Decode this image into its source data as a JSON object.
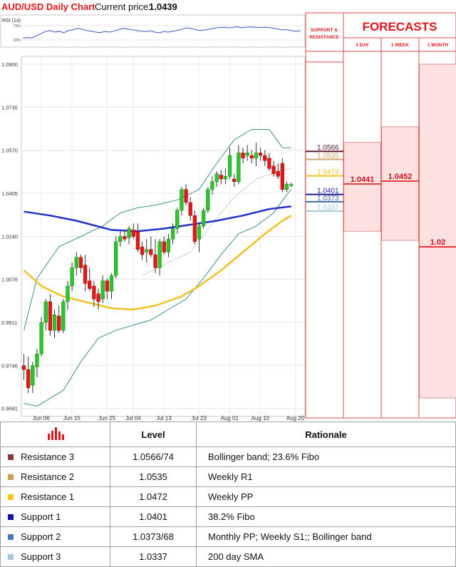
{
  "header": {
    "title": "AUD/USD Daily Chart",
    "price_label": "Current price:",
    "price_value": "1.0439"
  },
  "rsi": {
    "label": "RSI (14)",
    "upper": "70%",
    "lower": "30%"
  },
  "sr_panel": {
    "header": "SUPPORT & RESISTANCE",
    "levels": [
      {
        "value": 1.0566,
        "label": "1.0566",
        "color": "#5a1a32"
      },
      {
        "value": 1.0535,
        "label": "1.0535",
        "color": "#d2a868"
      },
      {
        "value": 1.0472,
        "label": "1.0472",
        "color": "#f0c419"
      },
      {
        "value": 1.0401,
        "label": "1.0401",
        "color": "#1a1a9a"
      },
      {
        "value": 1.0373,
        "label": "1.0373",
        "color": "#3b6aa8"
      },
      {
        "value": 1.0337,
        "label": "1.0337",
        "color": "#a8c8dc"
      }
    ]
  },
  "forecasts": {
    "title": "FORECASTS",
    "columns": [
      {
        "label": "1 DAY",
        "value": "1.0441",
        "center": 1.0441,
        "high": 1.06,
        "low": 1.026
      },
      {
        "label": "1 WEEK",
        "value": "1.0452",
        "center": 1.0452,
        "high": 1.066,
        "low": 1.0225
      },
      {
        "label": "1 MONTH",
        "value": "1.02",
        "center": 1.02,
        "high": 1.09,
        "low": 0.96
      }
    ]
  },
  "table": {
    "col_level": "Level",
    "col_rationale": "Rationale",
    "rows": [
      {
        "name": "Resistance 3",
        "level": "1.0566/74",
        "rationale": "Bollinger band; 23.6% Fibo",
        "color": "#8b3a3a"
      },
      {
        "name": "Resistance 2",
        "level": "1.0535",
        "rationale": "Weekly R1",
        "color": "#c9a050"
      },
      {
        "name": "Resistance 1",
        "level": "1.0472",
        "rationale": "Weekly PP",
        "color": "#f5c518"
      },
      {
        "name": "Support 1",
        "level": "1.0401",
        "rationale": "38.2% Fibo",
        "color": "#1010b0"
      },
      {
        "name": "Support 2",
        "level": "1.0373/68",
        "rationale": "Monthly PP; Weekly S1;;  Bollinger band",
        "color": "#4a78b8"
      },
      {
        "name": "Support 3",
        "level": "1.0337",
        "rationale": "200 day SMA",
        "color": "#a8c8e0"
      }
    ]
  },
  "chart_data": {
    "type": "candlestick",
    "title": "AUD/USD Daily Chart",
    "y_ticks": [
      1.09,
      1.0735,
      1.057,
      1.0405,
      1.024,
      1.0076,
      0.9911,
      0.9746,
      0.9581
    ],
    "y_tick_labels": [
      "1.0900",
      "1.0735",
      "1.0570",
      "1.0405",
      "1.0240",
      "1.0076",
      "0.9911",
      "0.9746",
      "0.9581"
    ],
    "ylim": [
      0.955,
      1.093
    ],
    "x_tick_labels": [
      {
        "label": "Jun 06",
        "index": 2
      },
      {
        "label": "Jun 15",
        "index": 9
      },
      {
        "label": "Jun 25",
        "index": 17
      },
      {
        "label": "Jul 04",
        "index": 23
      },
      {
        "label": "Jul 13",
        "index": 30
      },
      {
        "label": "Jul 23",
        "index": 38
      },
      {
        "label": "Aug 01",
        "index": 45
      },
      {
        "label": "Aug 10",
        "index": 52
      },
      {
        "label": "Aug 20",
        "index": 60
      }
    ],
    "candles": [
      {
        "o": 0.9745,
        "h": 0.979,
        "l": 0.969,
        "c": 0.973
      },
      {
        "o": 0.973,
        "h": 0.978,
        "l": 0.964,
        "c": 0.966
      },
      {
        "o": 0.967,
        "h": 0.976,
        "l": 0.964,
        "c": 0.9745
      },
      {
        "o": 0.974,
        "h": 0.981,
        "l": 0.97,
        "c": 0.979
      },
      {
        "o": 0.979,
        "h": 0.993,
        "l": 0.978,
        "c": 0.991
      },
      {
        "o": 0.991,
        "h": 1.0,
        "l": 0.988,
        "c": 0.999
      },
      {
        "o": 0.999,
        "h": 1.002,
        "l": 0.986,
        "c": 0.988
      },
      {
        "o": 0.988,
        "h": 0.996,
        "l": 0.985,
        "c": 0.994
      },
      {
        "o": 0.9935,
        "h": 0.9975,
        "l": 0.987,
        "c": 0.988
      },
      {
        "o": 0.988,
        "h": 1.0,
        "l": 0.987,
        "c": 0.999
      },
      {
        "o": 0.999,
        "h": 1.007,
        "l": 0.996,
        "c": 1.005
      },
      {
        "o": 1.005,
        "h": 1.014,
        "l": 1.003,
        "c": 1.012
      },
      {
        "o": 1.012,
        "h": 1.018,
        "l": 1.009,
        "c": 1.016
      },
      {
        "o": 1.016,
        "h": 1.017,
        "l": 1.01,
        "c": 1.012
      },
      {
        "o": 1.013,
        "h": 1.017,
        "l": 1.003,
        "c": 1.006
      },
      {
        "o": 1.007,
        "h": 1.012,
        "l": 1.003,
        "c": 1.004
      },
      {
        "o": 1.005,
        "h": 1.007,
        "l": 0.997,
        "c": 1.0
      },
      {
        "o": 1.002,
        "h": 1.004,
        "l": 0.996,
        "c": 0.999
      },
      {
        "o": 1.0,
        "h": 1.009,
        "l": 0.9985,
        "c": 1.007
      },
      {
        "o": 1.007,
        "h": 1.008,
        "l": 1.0,
        "c": 1.003
      },
      {
        "o": 1.003,
        "h": 1.01,
        "l": 1.0,
        "c": 1.009
      },
      {
        "o": 1.009,
        "h": 1.024,
        "l": 1.008,
        "c": 1.022
      },
      {
        "o": 1.022,
        "h": 1.026,
        "l": 1.02,
        "c": 1.024
      },
      {
        "o": 1.024,
        "h": 1.026,
        "l": 1.022,
        "c": 1.023
      },
      {
        "o": 1.0235,
        "h": 1.028,
        "l": 1.021,
        "c": 1.027
      },
      {
        "o": 1.0265,
        "h": 1.029,
        "l": 1.023,
        "c": 1.024
      },
      {
        "o": 1.026,
        "h": 1.029,
        "l": 1.018,
        "c": 1.019
      },
      {
        "o": 1.02,
        "h": 1.022,
        "l": 1.015,
        "c": 1.017
      },
      {
        "o": 1.018,
        "h": 1.023,
        "l": 1.014,
        "c": 1.019
      },
      {
        "o": 1.019,
        "h": 1.024,
        "l": 1.016,
        "c": 1.017
      },
      {
        "o": 1.017,
        "h": 1.023,
        "l": 1.01,
        "c": 1.012
      },
      {
        "o": 1.012,
        "h": 1.023,
        "l": 1.009,
        "c": 1.022
      },
      {
        "o": 1.022,
        "h": 1.024,
        "l": 1.017,
        "c": 1.018
      },
      {
        "o": 1.018,
        "h": 1.025,
        "l": 1.016,
        "c": 1.023
      },
      {
        "o": 1.023,
        "h": 1.029,
        "l": 1.021,
        "c": 1.027
      },
      {
        "o": 1.027,
        "h": 1.035,
        "l": 1.025,
        "c": 1.034
      },
      {
        "o": 1.034,
        "h": 1.043,
        "l": 1.032,
        "c": 1.042
      },
      {
        "o": 1.042,
        "h": 1.044,
        "l": 1.036,
        "c": 1.037
      },
      {
        "o": 1.037,
        "h": 1.039,
        "l": 1.03,
        "c": 1.032
      },
      {
        "o": 1.032,
        "h": 1.034,
        "l": 1.021,
        "c": 1.022
      },
      {
        "o": 1.023,
        "h": 1.029,
        "l": 1.018,
        "c": 1.028
      },
      {
        "o": 1.028,
        "h": 1.035,
        "l": 1.027,
        "c": 1.034
      },
      {
        "o": 1.034,
        "h": 1.043,
        "l": 1.033,
        "c": 1.042
      },
      {
        "o": 1.042,
        "h": 1.047,
        "l": 1.04,
        "c": 1.045
      },
      {
        "o": 1.045,
        "h": 1.049,
        "l": 1.043,
        "c": 1.048
      },
      {
        "o": 1.0475,
        "h": 1.0495,
        "l": 1.044,
        "c": 1.046
      },
      {
        "o": 1.046,
        "h": 1.05,
        "l": 1.044,
        "c": 1.047
      },
      {
        "o": 1.047,
        "h": 1.058,
        "l": 1.046,
        "c": 1.055
      },
      {
        "o": 1.046,
        "h": 1.048,
        "l": 1.043,
        "c": 1.045
      },
      {
        "o": 1.045,
        "h": 1.059,
        "l": 1.044,
        "c": 1.056
      },
      {
        "o": 1.056,
        "h": 1.058,
        "l": 1.052,
        "c": 1.054
      },
      {
        "o": 1.055,
        "h": 1.059,
        "l": 1.053,
        "c": 1.056
      },
      {
        "o": 1.055,
        "h": 1.057,
        "l": 1.052,
        "c": 1.054
      },
      {
        "o": 1.054,
        "h": 1.06,
        "l": 1.051,
        "c": 1.056
      },
      {
        "o": 1.056,
        "h": 1.058,
        "l": 1.053,
        "c": 1.055
      },
      {
        "o": 1.055,
        "h": 1.057,
        "l": 1.051,
        "c": 1.053
      },
      {
        "o": 1.054,
        "h": 1.056,
        "l": 1.049,
        "c": 1.05
      },
      {
        "o": 1.051,
        "h": 1.053,
        "l": 1.047,
        "c": 1.048
      },
      {
        "o": 1.049,
        "h": 1.052,
        "l": 1.046,
        "c": 1.047
      },
      {
        "o": 1.052,
        "h": 1.054,
        "l": 1.041,
        "c": 1.042
      },
      {
        "o": 1.042,
        "h": 1.045,
        "l": 1.041,
        "c": 1.044
      },
      {
        "o": 1.0435,
        "h": 1.0445,
        "l": 1.043,
        "c": 1.0439
      }
    ],
    "sma_200": [
      [
        0,
        1.0335
      ],
      [
        6,
        1.032
      ],
      [
        12,
        1.03
      ],
      [
        20,
        1.0265
      ],
      [
        26,
        1.026
      ],
      [
        32,
        1.027
      ],
      [
        38,
        1.0285
      ],
      [
        44,
        1.03
      ],
      [
        50,
        1.032
      ],
      [
        56,
        1.0345
      ],
      [
        61,
        1.0355
      ]
    ],
    "sma_100": [
      [
        0,
        1.011
      ],
      [
        4,
        1.005
      ],
      [
        9,
        1.001
      ],
      [
        15,
        0.9985
      ],
      [
        20,
        0.9965
      ],
      [
        25,
        0.996
      ],
      [
        30,
        0.9975
      ],
      [
        36,
        1.001
      ],
      [
        40,
        1.005
      ],
      [
        45,
        1.011
      ],
      [
        50,
        1.018
      ],
      [
        55,
        1.025
      ],
      [
        59,
        1.03
      ],
      [
        61,
        1.032
      ]
    ],
    "bb_upper": [
      [
        0,
        0.988
      ],
      [
        3,
        1.008
      ],
      [
        8,
        1.02
      ],
      [
        13,
        1.024
      ],
      [
        18,
        1.028
      ],
      [
        22,
        1.033
      ],
      [
        26,
        1.035
      ],
      [
        30,
        1.036
      ],
      [
        35,
        1.038
      ],
      [
        40,
        1.042
      ],
      [
        44,
        1.052
      ],
      [
        48,
        1.061
      ],
      [
        52,
        1.065
      ],
      [
        56,
        1.065
      ],
      [
        59,
        1.058
      ],
      [
        61,
        1.058
      ]
    ],
    "bb_lower": [
      [
        0,
        0.96
      ],
      [
        3,
        0.959
      ],
      [
        6,
        0.962
      ],
      [
        9,
        0.965
      ],
      [
        13,
        0.976
      ],
      [
        17,
        0.985
      ],
      [
        21,
        0.988
      ],
      [
        25,
        0.99
      ],
      [
        29,
        0.992
      ],
      [
        33,
        0.996
      ],
      [
        37,
        1.0
      ],
      [
        41,
        1.008
      ],
      [
        45,
        1.017
      ],
      [
        49,
        1.025
      ],
      [
        53,
        1.028
      ],
      [
        57,
        1.033
      ],
      [
        60,
        1.04
      ],
      [
        61,
        1.042
      ]
    ],
    "bb_mid": [
      [
        27,
        1.009
      ],
      [
        33,
        1.014
      ],
      [
        38,
        1.018
      ],
      [
        43,
        1.029
      ],
      [
        48,
        1.039
      ],
      [
        53,
        1.046
      ],
      [
        58,
        1.049
      ],
      [
        61,
        1.05
      ]
    ],
    "rsi_values": [
      30,
      32,
      31,
      38,
      45,
      52,
      55,
      50,
      53,
      48,
      55,
      58,
      62,
      60,
      55,
      53,
      50,
      48,
      52,
      50,
      53,
      58,
      62,
      60,
      58,
      55,
      53,
      52,
      54,
      50,
      48,
      52,
      50,
      53,
      56,
      60,
      64,
      62,
      58,
      55,
      57,
      60,
      63,
      65,
      66,
      64,
      65,
      68,
      64,
      66,
      67,
      66,
      65,
      66,
      65,
      63,
      60,
      57,
      58,
      55,
      52,
      55
    ]
  }
}
